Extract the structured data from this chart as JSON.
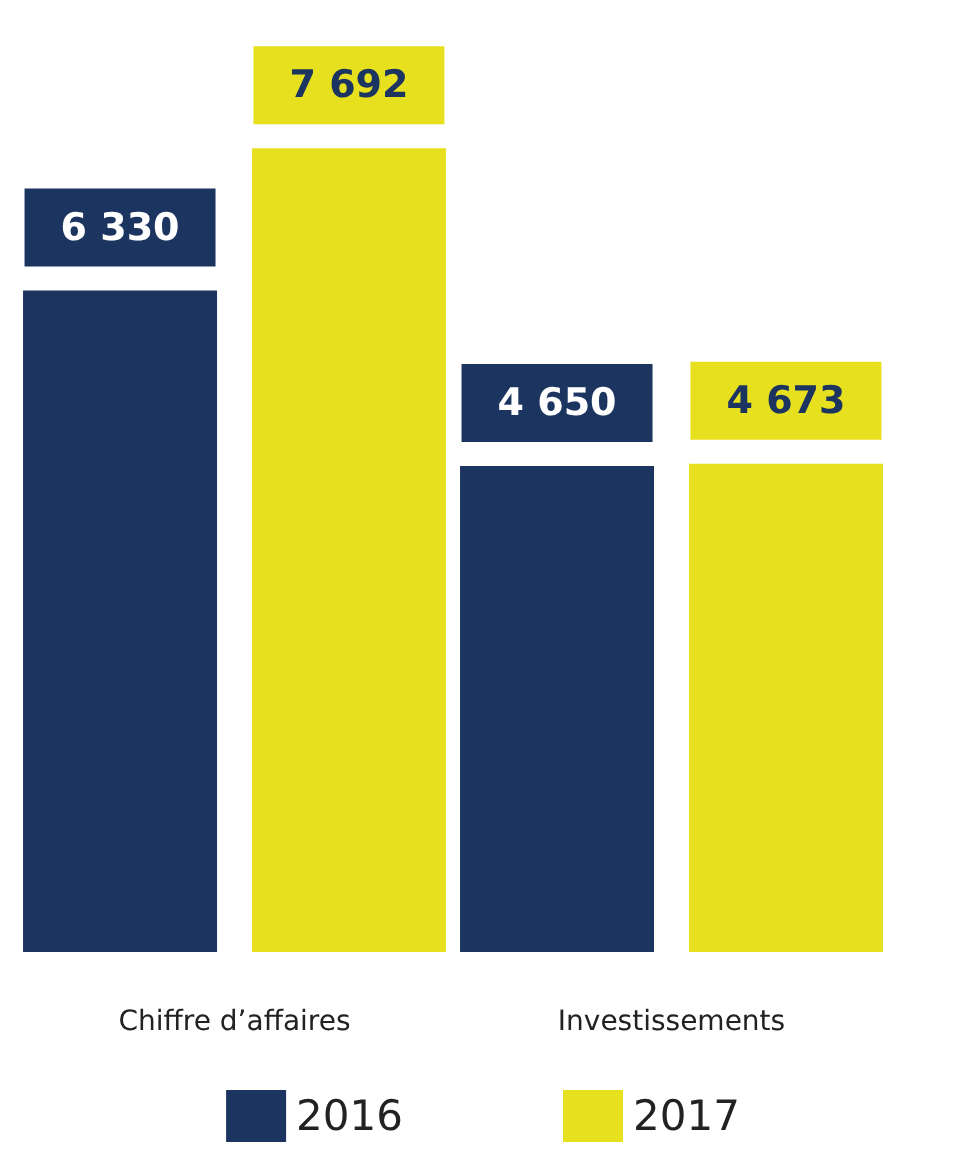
{
  "chart_data": {
    "type": "bar",
    "categories": [
      "Chiffre d’affaires",
      "Investissements"
    ],
    "series": [
      {
        "name": "2016",
        "color": "#1b3460",
        "values": [
          6330,
          4650
        ],
        "value_labels": [
          "6 330",
          "4 650"
        ]
      },
      {
        "name": "2017",
        "color": "#e6e01e",
        "values": [
          7692,
          4673
        ],
        "value_labels": [
          "7 692",
          "4 673"
        ]
      }
    ],
    "legend": "bottom"
  }
}
